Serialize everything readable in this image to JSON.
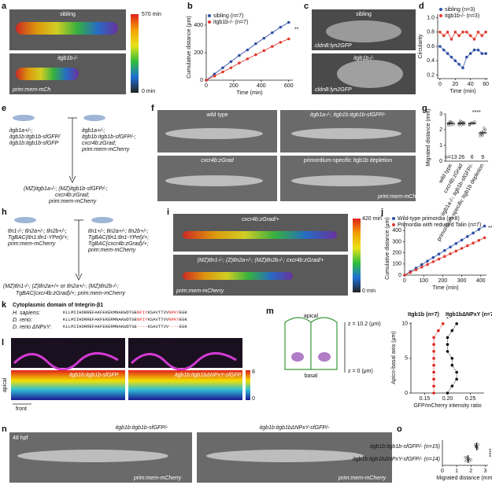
{
  "panels": {
    "a": {
      "label": "a",
      "top": "sibling",
      "bottom": "itgb1b-/-",
      "marker": "prim:mem-mCh",
      "colorbar_max": "570 min",
      "colorbar_min": "0 min"
    },
    "b": {
      "label": "b"
    },
    "c": {
      "label": "c",
      "top": "sibling",
      "top_marker": "cldnB:lyn2GFP",
      "bottom": "itgb1b-/-",
      "bottom_marker": "cldnB:lyn2GFP"
    },
    "d": {
      "label": "d"
    },
    "e": {
      "label": "e",
      "female": [
        "itgb1a+/-;",
        "itgb1b:itgb1b-sfGFP/",
        "itgb1b:itgb1b-sfGFP"
      ],
      "male": [
        "itgb1a+/-;",
        "itgb1b:itgb1b-sfGFP/-;",
        "cxcr4b:zGrad;",
        "prim:mem-mCherry"
      ],
      "offspring": [
        "(MZ)itgb1a-/-; (MZ)itgb1b-sfGFP/-;",
        "cxcr4b:zGrad;",
        "prim:mem-mCherry"
      ]
    },
    "f": {
      "label": "f",
      "images": [
        "wild type",
        "itgb1a-/-; itgb1b:itgb1b-sfGFP/-",
        "cxcr4b:zGrad",
        "primordium-specific Itgb1b depletion"
      ],
      "marker": "prim:mem-mCherry"
    },
    "g": {
      "label": "g"
    },
    "h": {
      "label": "h",
      "female": [
        "tln1-/-; tln2a+/-; tln2b+/-;",
        "TgBAC(tln1:tln1-YPet)/+;",
        "prim:mem-mCherry"
      ],
      "male": [
        "tln1+/-; tln2a+/-; tln2b+/-;",
        "TgBAC(tln1:tln1-YPet)/+;",
        "TgBAC(cxcr4b:zGrad)/+;",
        "prim:mem-mCherry"
      ],
      "offspring": [
        "(MZ)tln1-/-; (Z)tln2a+/+ or tln2a+/-; (MZ)tln2b-/-;",
        "TgBAC(cxcr4b:zGrad)/+; prim:mem-mCherry"
      ]
    },
    "i": {
      "label": "i",
      "top": "cxcr4b:zGrad/+",
      "bottom": "(MZ)tln1-/-; (Z)tln2a+/-; (MZ)tln2b-/-; cxcr4b:zGrad/+",
      "marker": "prim:mem-mCherry",
      "colorbar_max": "420 min",
      "colorbar_min": "0 min"
    },
    "j": {
      "label": "j"
    },
    "k": {
      "label": "k",
      "title": "Cytoplasmic domain of Integrin-β1",
      "rows": [
        {
          "species": "H. sapiens:",
          "seq": [
            "KLLMIIHDRREFAKFEKEKMNAKWDTGE",
            "NPIY",
            "KSAVTTVV",
            "NPKY",
            "EGK"
          ]
        },
        {
          "species": "D. rerio:",
          "seq": [
            "KLLMIIHDRREFAKFEKERMNAKWDTGE",
            "NPIY",
            "KSAVTTVV",
            "NPKY",
            "EGK"
          ]
        },
        {
          "species": "D. rerio ΔNPxY:",
          "seq": [
            "KLLMIIHDRREFAKFEKERMNAKWDTGE",
            "----",
            "KSAVTTVV",
            "----",
            "EGK"
          ]
        }
      ]
    },
    "l": {
      "label": "l",
      "left_red": "primordium",
      "left_green": "itgb1b:itgb1b-sfGFP",
      "right_red": "primordium",
      "right_green": "itgb1b:itgb1bΔNPxY-sfGFP",
      "left_heat": "itgb1b:itgb1b-sfGFP",
      "right_heat": "itgb1b:itgb1bΔNPxY-sfGFP",
      "scale_max": "8",
      "scale_min": "0",
      "apical": "apical",
      "front": "front"
    },
    "m": {
      "label": "m",
      "apical": "apical",
      "basal": "basal",
      "z_top": "z = 10.2 (μm)",
      "z_bottom": "z = 0 (μm)"
    },
    "n": {
      "label": "n",
      "left": "itgb1b:itgb1b-sfGFP/-",
      "right": "itgb1b:itgb1bΔNPxY-sfGFP/-",
      "stage": "48 hpf",
      "marker": "prim:mem-mCherry"
    },
    "o": {
      "label": "o"
    }
  },
  "chart_data": [
    {
      "type": "line",
      "x_label": "Time (min)",
      "y_label": "Cumulative distance (μm)",
      "x": [
        0,
        60,
        120,
        180,
        240,
        300,
        360,
        420,
        480,
        540,
        600
      ],
      "xlim": [
        0,
        630
      ],
      "xticks": [
        0,
        200,
        400,
        600
      ],
      "ylim": [
        0,
        480
      ],
      "yticks": [
        0,
        200,
        400
      ],
      "annotation": "**",
      "series": [
        {
          "name": "sibling (n=7)",
          "color": "#2f4fa5",
          "values": [
            0,
            45,
            90,
            135,
            180,
            220,
            265,
            305,
            345,
            385,
            420
          ]
        },
        {
          "name": "itgb1b-/- (n=7)",
          "color": "#e03a2e",
          "values": [
            0,
            30,
            60,
            90,
            125,
            155,
            185,
            215,
            245,
            275,
            300
          ]
        }
      ]
    },
    {
      "type": "line",
      "x_label": "Time (min)",
      "y_label": "Circularity",
      "x": [
        0,
        5,
        10,
        15,
        20,
        25,
        30,
        35,
        40,
        45,
        50,
        55,
        60
      ],
      "xlim": [
        -3,
        63
      ],
      "xticks": [
        0,
        20,
        40,
        60
      ],
      "ylim": [
        0.15,
        1.05
      ],
      "yticks": [
        0.2,
        0.4,
        0.6,
        0.8,
        {
          "value": 1,
          "label": "1.0"
        }
      ],
      "series": [
        {
          "name": "sibling (n=3)",
          "color": "#2f4fa5",
          "values": [
            0.6,
            0.55,
            0.5,
            0.45,
            0.4,
            0.35,
            0.3,
            0.45,
            0.5,
            0.55,
            0.55,
            0.5,
            0.5
          ]
        },
        {
          "name": "itgb1b-/- (n=3)",
          "color": "#e03a2e",
          "values": [
            0.8,
            0.75,
            0.8,
            0.7,
            0.8,
            0.75,
            0.8,
            0.8,
            0.75,
            0.7,
            0.8,
            0.75,
            0.8
          ]
        }
      ]
    },
    {
      "type": "strip",
      "y_label": "Migrated distance (mm)",
      "categories": [
        "wild type",
        "cxcr4b:zGrad",
        "itgb1a-/-; itgb1b-sfGFP/-",
        "primordium-specific Itgb1b depletion"
      ],
      "ylim": [
        0,
        3
      ],
      "yticks": [
        0,
        1,
        2,
        3
      ],
      "values": [
        2.4,
        2.4,
        2.4,
        1.8
      ],
      "n_labels": [
        "n=13",
        "26",
        "6",
        "9"
      ],
      "annotation": "****",
      "points": [
        [
          2.3,
          2.4,
          2.5,
          2.45,
          2.35,
          2.4,
          2.5,
          2.3
        ],
        [
          2.3,
          2.4,
          2.5,
          2.45,
          2.35,
          2.4,
          2.55,
          2.3,
          2.4,
          2.45
        ],
        [
          2.35,
          2.4,
          2.45,
          2.4,
          2.5,
          2.3
        ],
        [
          1.6,
          1.7,
          1.8,
          1.9,
          2.0,
          1.75,
          1.85,
          1.65,
          2.1
        ]
      ]
    },
    {
      "type": "line",
      "x_label": "Time (min)",
      "y_label": "Cumulative distance (μm)",
      "x": [
        0,
        30,
        60,
        90,
        120,
        150,
        180,
        210,
        240,
        270,
        300,
        330,
        360,
        390,
        420
      ],
      "xlim": [
        0,
        430
      ],
      "xticks": [
        0,
        100,
        200,
        300,
        400
      ],
      "ylim": [
        0,
        480
      ],
      "yticks": [
        0,
        100,
        200,
        300,
        400
      ],
      "annotation": "****",
      "series": [
        {
          "name": "Wild-type primordia (n=8)",
          "color": "#2f4fa5",
          "values": [
            0,
            32,
            63,
            95,
            126,
            158,
            189,
            221,
            252,
            284,
            315,
            347,
            378,
            410,
            441
          ]
        },
        {
          "name": "Primordia with reduced Talin (n=7)",
          "color": "#e03a2e",
          "values": [
            0,
            24,
            48,
            72,
            96,
            120,
            144,
            168,
            192,
            216,
            240,
            264,
            288,
            312,
            336
          ]
        }
      ]
    },
    {
      "type": "profile",
      "x_label": "GFP/mCherry intensity ratio",
      "y_label": "Apico-basal axis (μm)",
      "y": [
        0,
        1,
        2,
        3,
        4,
        5,
        6,
        7,
        8,
        9,
        10
      ],
      "ylim": [
        0,
        10.2
      ],
      "yticks": [
        0,
        5,
        10
      ],
      "xlim": [
        0.12,
        0.28
      ],
      "xticks": [
        0.15,
        {
          "value": 0.2,
          "label": "0.20"
        },
        0.25
      ],
      "annotation": "*",
      "series": [
        {
          "name": "Itgb1b (n=7)",
          "color": "#111111",
          "values": [
            0.2,
            0.21,
            0.22,
            0.22,
            0.21,
            0.21,
            0.2,
            0.2,
            0.2,
            0.21,
            0.22
          ]
        },
        {
          "name": "Itgb1bΔNPxY (n=7)",
          "color": "#e0201b",
          "values": [
            0.17,
            0.17,
            0.17,
            0.17,
            0.17,
            0.17,
            0.17,
            0.17,
            0.17,
            0.18,
            0.19
          ]
        }
      ]
    },
    {
      "type": "hstrip",
      "x_label": "Migrated distance (mm)",
      "categories": [
        "itgb1b:itgb1b-sfGFP/- (n=15)",
        "itgb1b:itgb1bΔNPxY-sfGFP/- (n=14)"
      ],
      "xlim": [
        0,
        3.2
      ],
      "xticks": [
        0,
        1,
        2,
        3
      ],
      "values": [
        2.4,
        1.8
      ],
      "annotation": "****",
      "points": [
        [
          2.3,
          2.35,
          2.4,
          2.45,
          2.5,
          2.4,
          2.35,
          2.45
        ],
        [
          1.6,
          1.7,
          1.8,
          1.9,
          1.75,
          1.85,
          2.0,
          1.65
        ]
      ]
    }
  ]
}
